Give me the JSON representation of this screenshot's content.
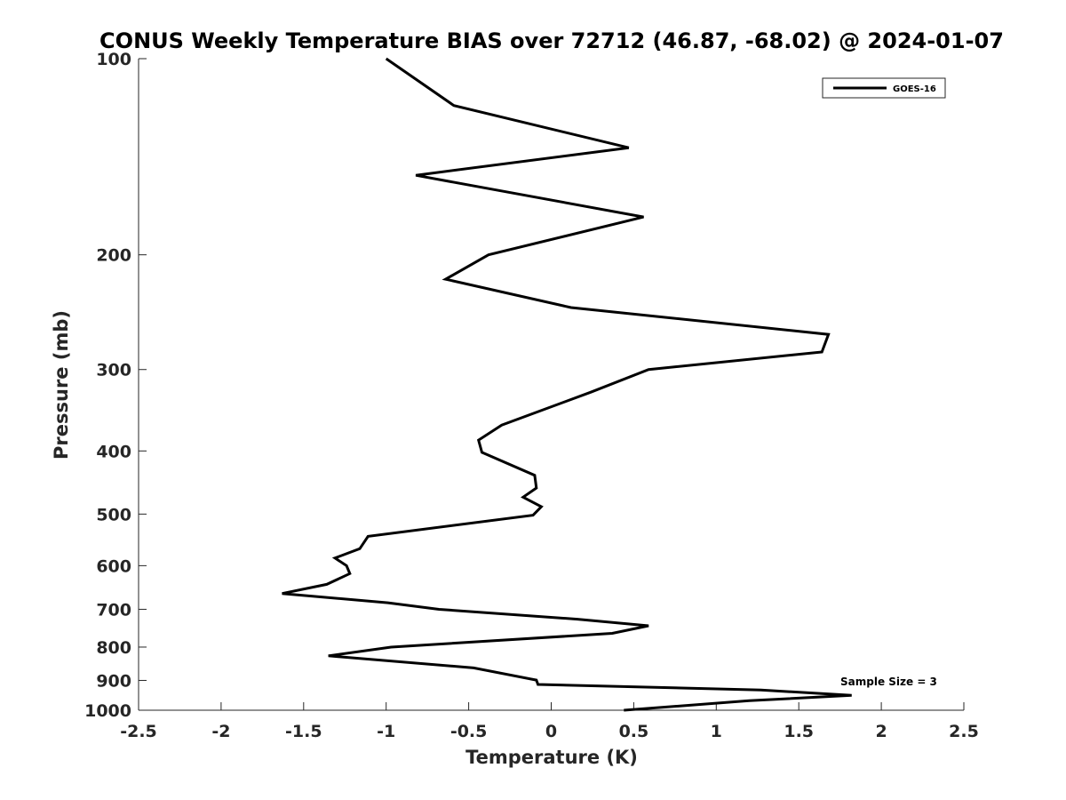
{
  "chart_data": {
    "type": "line",
    "title": "CONUS Weekly Temperature BIAS over 72712 (46.87, -68.02) @ 2024-01-07",
    "xlabel": "Temperature (K)",
    "ylabel": "Pressure (mb)",
    "xlim": [
      -2.5,
      2.5
    ],
    "ylim": [
      1000,
      100
    ],
    "yscale": "log",
    "x_ticks": [
      -2.5,
      -2,
      -1.5,
      -1,
      -0.5,
      0,
      0.5,
      1,
      1.5,
      2,
      2.5
    ],
    "x_tick_labels": [
      "-2.5",
      "-2",
      "-1.5",
      "-1",
      "-0.5",
      "0",
      "0.5",
      "1",
      "1.5",
      "2",
      "2.5"
    ],
    "y_ticks": [
      100,
      200,
      300,
      400,
      500,
      600,
      700,
      800,
      900,
      1000
    ],
    "y_tick_labels": [
      "100",
      "200",
      "300",
      "400",
      "500",
      "600",
      "700",
      "800",
      "900",
      "1000"
    ],
    "grid": false,
    "legend": "top-right",
    "series": [
      {
        "name": "GOES-16",
        "color": "#000000",
        "points": [
          [
            -1.0,
            100
          ],
          [
            -0.59,
            118
          ],
          [
            0.47,
            137
          ],
          [
            -0.82,
            151
          ],
          [
            0.56,
            175
          ],
          [
            -0.38,
            200
          ],
          [
            -0.64,
            218
          ],
          [
            0.12,
            241
          ],
          [
            1.68,
            265
          ],
          [
            1.64,
            282
          ],
          [
            0.59,
            300
          ],
          [
            0.24,
            325
          ],
          [
            -0.3,
            365
          ],
          [
            -0.44,
            385
          ],
          [
            -0.42,
            402
          ],
          [
            -0.1,
            436
          ],
          [
            -0.09,
            456
          ],
          [
            -0.17,
            471
          ],
          [
            -0.06,
            487
          ],
          [
            -0.11,
            502
          ],
          [
            -1.11,
            541
          ],
          [
            -1.16,
            565
          ],
          [
            -1.31,
            584
          ],
          [
            -1.24,
            600
          ],
          [
            -1.22,
            617
          ],
          [
            -1.36,
            641
          ],
          [
            -1.63,
            662
          ],
          [
            -0.99,
            684
          ],
          [
            -0.68,
            700
          ],
          [
            0.16,
            725
          ],
          [
            0.59,
            742
          ],
          [
            0.37,
            762
          ],
          [
            -0.97,
            800
          ],
          [
            -1.35,
            825
          ],
          [
            -0.47,
            861
          ],
          [
            -0.09,
            899
          ],
          [
            -0.08,
            913
          ],
          [
            1.27,
            931
          ],
          [
            1.82,
            949
          ],
          [
            1.2,
            967
          ],
          [
            0.44,
            1000
          ]
        ]
      }
    ],
    "annotation": "Sample Size = 3"
  }
}
